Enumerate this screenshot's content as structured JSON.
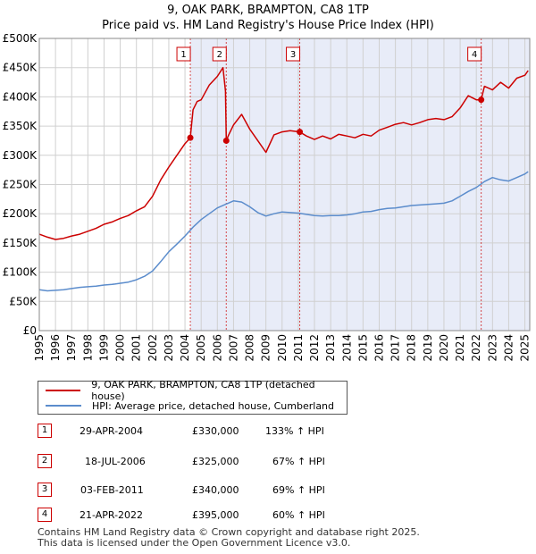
{
  "chart_data": {
    "type": "line",
    "title": "9, OAK PARK, BRAMPTON, CA8 1TP",
    "subtitle": "Price paid vs. HM Land Registry's House Price Index (HPI)",
    "xlabel": "",
    "ylabel": "",
    "xlim": [
      1995,
      2025.3
    ],
    "ylim": [
      0,
      500000
    ],
    "y_ticks": [
      0,
      50000,
      100000,
      150000,
      200000,
      250000,
      300000,
      350000,
      400000,
      450000,
      500000
    ],
    "y_tick_labels": [
      "£0",
      "£50K",
      "£100K",
      "£150K",
      "£200K",
      "£250K",
      "£300K",
      "£350K",
      "£400K",
      "£450K",
      "£500K"
    ],
    "x_ticks": [
      1995,
      1996,
      1997,
      1998,
      1999,
      2000,
      2001,
      2002,
      2003,
      2004,
      2005,
      2006,
      2007,
      2008,
      2009,
      2010,
      2011,
      2012,
      2013,
      2014,
      2015,
      2016,
      2017,
      2018,
      2019,
      2020,
      2021,
      2022,
      2023,
      2024,
      2025
    ],
    "x_tick_labels": [
      "1995",
      "1996",
      "1997",
      "1998",
      "1999",
      "2000",
      "2001",
      "2002",
      "2003",
      "2004",
      "2005",
      "2006",
      "2007",
      "2008",
      "2009",
      "2010",
      "2011",
      "2012",
      "2013",
      "2014",
      "2015",
      "2016",
      "2017",
      "2018",
      "2019",
      "2020",
      "2021",
      "2022",
      "2023",
      "2024",
      "2025"
    ],
    "grid": true,
    "series": [
      {
        "name": "9, OAK PARK, BRAMPTON, CA8 1TP (detached house)",
        "color": "#cc0000",
        "x": [
          1995.0,
          1995.5,
          1996.0,
          1996.5,
          1997.0,
          1997.5,
          1998.0,
          1998.5,
          1999.0,
          1999.5,
          2000.0,
          2000.5,
          2001.0,
          2001.5,
          2002.0,
          2002.5,
          2003.0,
          2003.5,
          2004.0,
          2004.33,
          2004.5,
          2004.75,
          2005.0,
          2005.5,
          2006.0,
          2006.35,
          2006.5,
          2006.55,
          2006.7,
          2007.0,
          2007.5,
          2008.0,
          2008.5,
          2009.0,
          2009.5,
          2010.0,
          2010.5,
          2011.09,
          2011.5,
          2012.0,
          2012.5,
          2013.0,
          2013.5,
          2014.0,
          2014.5,
          2015.0,
          2015.5,
          2016.0,
          2016.5,
          2017.0,
          2017.5,
          2018.0,
          2018.5,
          2019.0,
          2019.5,
          2020.0,
          2020.5,
          2021.0,
          2021.5,
          2022.0,
          2022.3,
          2022.5,
          2023.0,
          2023.5,
          2024.0,
          2024.5,
          2025.0,
          2025.2
        ],
        "values": [
          165000,
          160000,
          156000,
          158000,
          162000,
          165000,
          170000,
          175000,
          182000,
          186000,
          192000,
          197000,
          205000,
          212000,
          230000,
          258000,
          280000,
          300000,
          320000,
          330000,
          378000,
          392000,
          395000,
          420000,
          435000,
          450000,
          410000,
          325000,
          335000,
          352000,
          370000,
          345000,
          325000,
          305000,
          335000,
          340000,
          342000,
          340000,
          333000,
          327000,
          333000,
          328000,
          336000,
          333000,
          330000,
          336000,
          333000,
          343000,
          348000,
          353000,
          356000,
          352000,
          356000,
          361000,
          363000,
          361000,
          366000,
          381000,
          402000,
          395000,
          395000,
          418000,
          412000,
          425000,
          415000,
          432000,
          437000,
          445000
        ]
      },
      {
        "name": "HPI: Average price, detached house, Cumberland",
        "color": "#5b8ccc",
        "x": [
          1995.0,
          1995.5,
          1996.0,
          1996.5,
          1997.0,
          1997.5,
          1998.0,
          1998.5,
          1999.0,
          1999.5,
          2000.0,
          2000.5,
          2001.0,
          2001.5,
          2002.0,
          2002.5,
          2003.0,
          2003.5,
          2004.0,
          2004.5,
          2005.0,
          2005.5,
          2006.0,
          2006.5,
          2007.0,
          2007.5,
          2008.0,
          2008.5,
          2009.0,
          2009.5,
          2010.0,
          2010.5,
          2011.0,
          2011.5,
          2012.0,
          2012.5,
          2013.0,
          2013.5,
          2014.0,
          2014.5,
          2015.0,
          2015.5,
          2016.0,
          2016.5,
          2017.0,
          2017.5,
          2018.0,
          2018.5,
          2019.0,
          2019.5,
          2020.0,
          2020.5,
          2021.0,
          2021.5,
          2022.0,
          2022.5,
          2023.0,
          2023.5,
          2024.0,
          2024.5,
          2025.0,
          2025.2
        ],
        "values": [
          70000,
          68000,
          69000,
          70000,
          72000,
          74000,
          75000,
          76000,
          78000,
          79000,
          81000,
          83000,
          87000,
          93000,
          102000,
          118000,
          135000,
          148000,
          162000,
          177000,
          190000,
          200000,
          210000,
          216000,
          222000,
          220000,
          212000,
          202000,
          196000,
          200000,
          203000,
          202000,
          201000,
          199000,
          197000,
          196000,
          197000,
          197000,
          198000,
          200000,
          203000,
          204000,
          207000,
          209000,
          210000,
          212000,
          214000,
          215000,
          216000,
          217000,
          218000,
          222000,
          230000,
          238000,
          245000,
          255000,
          262000,
          258000,
          256000,
          262000,
          268000,
          272000
        ]
      }
    ],
    "sale_markers": [
      {
        "label": "1",
        "x": 2004.33,
        "y": 330000
      },
      {
        "label": "2",
        "x": 2006.55,
        "y": 325000
      },
      {
        "label": "3",
        "x": 2011.09,
        "y": 340000
      },
      {
        "label": "4",
        "x": 2022.3,
        "y": 395000
      }
    ]
  },
  "legend": {
    "property_label": "9, OAK PARK, BRAMPTON, CA8 1TP (detached house)",
    "hpi_label": "HPI: Average price, detached house, Cumberland"
  },
  "sales": [
    {
      "num": "1",
      "date": "29-APR-2004",
      "price": "£330,000",
      "hpi": "133% ↑ HPI"
    },
    {
      "num": "2",
      "date": "18-JUL-2006",
      "price": "£325,000",
      "hpi": "67% ↑ HPI"
    },
    {
      "num": "3",
      "date": "03-FEB-2011",
      "price": "£340,000",
      "hpi": "69% ↑ HPI"
    },
    {
      "num": "4",
      "date": "21-APR-2022",
      "price": "£395,000",
      "hpi": "60% ↑ HPI"
    }
  ],
  "footer": {
    "line1": "Contains HM Land Registry data © Crown copyright and database right 2025.",
    "line2": "This data is licensed under the Open Government Licence v3.0."
  }
}
